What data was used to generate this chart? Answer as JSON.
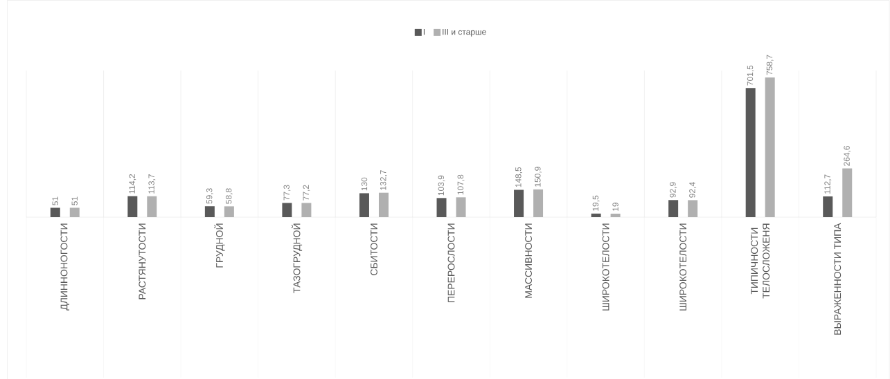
{
  "chart_data": {
    "type": "bar",
    "categories": [
      "ДЛИННОНОГОСТИ",
      "РАСТЯНУТОСТИ",
      "ГРУДНОЙ",
      "ТАЗОГРУДНОЙ",
      "СБИТОСТИ",
      "ПЕРЕРОСЛОСТИ",
      "МАССИВНОСТИ",
      "ШИРОКОТЕЛОСТИ",
      "ШИРОКОТЕЛОСТИ",
      "ТИПИЧНОСТИ ТЕЛОСЛОЖЕНЯ",
      "ВЫРАЖЕННОСТИ ТИПА"
    ],
    "series": [
      {
        "name": "I",
        "color": "#595959",
        "values": [
          51,
          114.2,
          59.3,
          77.3,
          130,
          103.9,
          148.5,
          19.5,
          92.9,
          701.5,
          112.7
        ],
        "value_labels": [
          "51",
          "114,2",
          "59,3",
          "77,3",
          "130",
          "103,9",
          "148,5",
          "19,5",
          "92,9",
          "701,5",
          "112,7"
        ]
      },
      {
        "name": "III и старше",
        "color": "#b0b0b0",
        "values": [
          51,
          113.7,
          58.8,
          77.2,
          132.7,
          107.8,
          150.9,
          19,
          92.4,
          758.7,
          264.6
        ],
        "value_labels": [
          "51",
          "113,7",
          "58,8",
          "77,2",
          "132,7",
          "107,8",
          "150,9",
          "19",
          "92,4",
          "758,7",
          "264,6"
        ]
      }
    ],
    "legend": "top",
    "grid": "x"
  }
}
